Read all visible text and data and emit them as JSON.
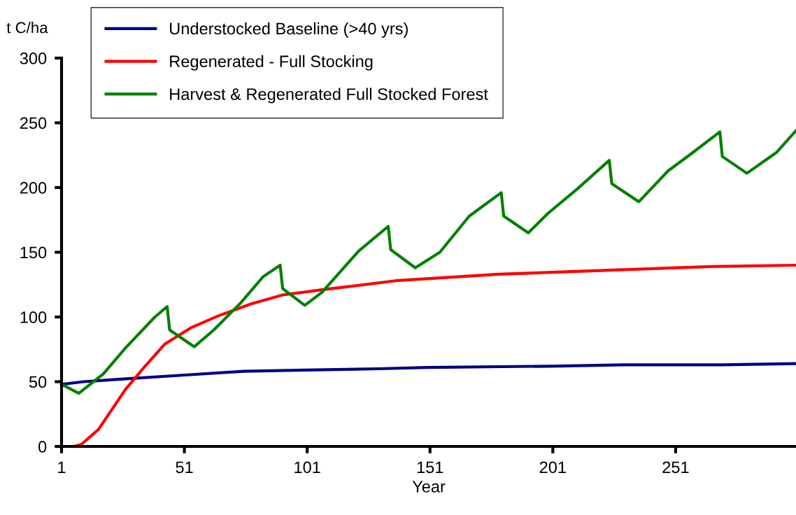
{
  "chart_data": {
    "type": "line",
    "xlabel": "Year",
    "ylabel": "t C/ha",
    "xlim": [
      1,
      300
    ],
    "xticks": [
      1,
      51,
      101,
      151,
      201,
      251
    ],
    "ylim": [
      0,
      300
    ],
    "yticks": [
      0,
      50,
      100,
      150,
      200,
      250,
      300
    ],
    "grid": false,
    "legend": "top left",
    "marker": "none",
    "line_style": "solid",
    "series": [
      {
        "name": "Understocked Baseline (>40 yrs)",
        "color": "#000080",
        "x": [
          1,
          10,
          25,
          50,
          75,
          100,
          130,
          150,
          200,
          230,
          270,
          300
        ],
        "values": [
          48,
          50,
          52,
          55,
          58,
          59,
          60,
          61,
          62,
          63,
          63,
          64
        ]
      },
      {
        "name": "Regenerated - Full Stocking",
        "color": "#ff0000",
        "x": [
          1,
          6,
          9,
          16,
          27,
          35,
          43,
          54,
          65,
          78,
          91,
          107,
          137,
          179,
          222,
          266,
          300
        ],
        "values": [
          0,
          0,
          1.5,
          13,
          44,
          62,
          79,
          92,
          101,
          110,
          117,
          121,
          128,
          133,
          136,
          139,
          140
        ]
      },
      {
        "name": "Harvest & Regenerated Full Stocked Forest",
        "color": "#008000",
        "x": [
          1,
          8,
          18,
          27,
          39,
          44,
          45,
          55,
          63,
          74,
          83,
          90,
          91,
          100,
          107,
          122,
          134,
          135,
          145,
          155,
          167,
          180,
          181,
          191,
          199,
          211,
          224,
          225,
          236,
          248,
          258,
          269,
          270,
          280,
          292,
          300
        ],
        "values": [
          48,
          41,
          56,
          76,
          100,
          108,
          90,
          77,
          90,
          111,
          131,
          140,
          122,
          109,
          119,
          151,
          170,
          152,
          138,
          150,
          178,
          196,
          178,
          165,
          180,
          199,
          221,
          203,
          189,
          213,
          227,
          243,
          224,
          211,
          227,
          244
        ]
      }
    ]
  }
}
